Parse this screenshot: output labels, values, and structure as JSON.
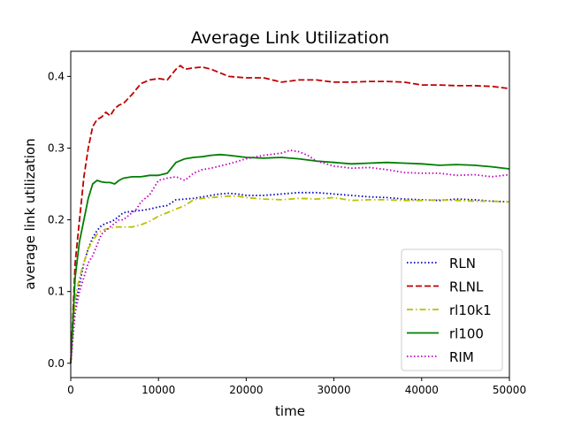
{
  "chart_data": {
    "type": "line",
    "title": "Average Link Utilization",
    "xlabel": "time",
    "ylabel": "average link utilization",
    "xlim": [
      0,
      50000
    ],
    "ylim": [
      -0.02,
      0.435
    ],
    "xticks": [
      0,
      10000,
      20000,
      30000,
      40000,
      50000
    ],
    "xtick_labels": [
      "0",
      "10000",
      "20000",
      "30000",
      "40000",
      "50000"
    ],
    "yticks": [
      0.0,
      0.1,
      0.2,
      0.3,
      0.4
    ],
    "ytick_labels": [
      "0.0",
      "0.1",
      "0.2",
      "0.3",
      "0.4"
    ],
    "grid": false,
    "legend": "lower-right",
    "series": [
      {
        "name": "RLN",
        "color": "#0000bf",
        "style": "dotted",
        "x": [
          0,
          500,
          1000,
          1500,
          2000,
          2500,
          3000,
          3500,
          4000,
          4500,
          5000,
          5500,
          6000,
          7000,
          8000,
          9000,
          10000,
          11000,
          12000,
          13000,
          14000,
          15000,
          16000,
          17000,
          18000,
          19000,
          20000,
          22000,
          24000,
          26000,
          28000,
          30000,
          32000,
          34000,
          36000,
          38000,
          40000,
          42000,
          44000,
          46000,
          48000,
          50000
        ],
        "y": [
          0.0,
          0.08,
          0.11,
          0.14,
          0.16,
          0.175,
          0.185,
          0.192,
          0.195,
          0.197,
          0.2,
          0.205,
          0.21,
          0.212,
          0.213,
          0.215,
          0.218,
          0.22,
          0.228,
          0.229,
          0.23,
          0.232,
          0.234,
          0.236,
          0.237,
          0.236,
          0.234,
          0.234,
          0.236,
          0.238,
          0.238,
          0.236,
          0.234,
          0.232,
          0.231,
          0.229,
          0.228,
          0.227,
          0.229,
          0.228,
          0.226,
          0.225
        ]
      },
      {
        "name": "RLNL",
        "color": "#bf0000",
        "style": "dashed",
        "x": [
          0,
          500,
          1000,
          1500,
          2000,
          2500,
          3000,
          3500,
          4000,
          4500,
          5000,
          5500,
          6000,
          7000,
          8000,
          9000,
          10000,
          11000,
          12000,
          12500,
          13000,
          14000,
          15000,
          16000,
          17000,
          18000,
          20000,
          22000,
          24000,
          26000,
          28000,
          30000,
          32000,
          34000,
          36000,
          38000,
          40000,
          42000,
          44000,
          46000,
          48000,
          50000
        ],
        "y": [
          0.0,
          0.14,
          0.2,
          0.26,
          0.3,
          0.33,
          0.34,
          0.343,
          0.35,
          0.345,
          0.355,
          0.36,
          0.362,
          0.375,
          0.39,
          0.395,
          0.397,
          0.395,
          0.41,
          0.415,
          0.41,
          0.412,
          0.413,
          0.41,
          0.405,
          0.4,
          0.398,
          0.398,
          0.392,
          0.395,
          0.395,
          0.392,
          0.392,
          0.393,
          0.393,
          0.392,
          0.388,
          0.388,
          0.387,
          0.387,
          0.386,
          0.383
        ]
      },
      {
        "name": "rl10k1",
        "color": "#bfbf00",
        "style": "dashdot",
        "x": [
          0,
          500,
          1000,
          1500,
          2000,
          2500,
          3000,
          3500,
          4000,
          4500,
          5000,
          5500,
          6000,
          7000,
          8000,
          9000,
          10000,
          11000,
          12000,
          13000,
          14000,
          15000,
          16000,
          17000,
          18000,
          19000,
          20000,
          22000,
          24000,
          26000,
          28000,
          30000,
          32000,
          34000,
          36000,
          38000,
          40000,
          42000,
          44000,
          46000,
          48000,
          50000
        ],
        "y": [
          0.0,
          0.09,
          0.12,
          0.14,
          0.16,
          0.17,
          0.18,
          0.185,
          0.187,
          0.188,
          0.19,
          0.19,
          0.19,
          0.19,
          0.193,
          0.198,
          0.205,
          0.21,
          0.215,
          0.22,
          0.228,
          0.23,
          0.231,
          0.232,
          0.233,
          0.233,
          0.231,
          0.229,
          0.228,
          0.23,
          0.229,
          0.231,
          0.227,
          0.228,
          0.228,
          0.227,
          0.227,
          0.228,
          0.227,
          0.226,
          0.226,
          0.225
        ]
      },
      {
        "name": "rl100",
        "color": "#007f00",
        "style": "solid",
        "x": [
          0,
          500,
          1000,
          1500,
          2000,
          2500,
          3000,
          3500,
          4000,
          4500,
          5000,
          5500,
          6000,
          7000,
          8000,
          9000,
          10000,
          11000,
          12000,
          13000,
          14000,
          15000,
          16000,
          17000,
          18000,
          20000,
          22000,
          24000,
          26000,
          28000,
          30000,
          32000,
          34000,
          36000,
          38000,
          40000,
          42000,
          44000,
          46000,
          48000,
          50000
        ],
        "y": [
          0.0,
          0.12,
          0.17,
          0.2,
          0.23,
          0.25,
          0.255,
          0.253,
          0.252,
          0.252,
          0.25,
          0.255,
          0.258,
          0.26,
          0.26,
          0.262,
          0.262,
          0.265,
          0.28,
          0.285,
          0.287,
          0.288,
          0.29,
          0.291,
          0.29,
          0.287,
          0.286,
          0.287,
          0.285,
          0.282,
          0.28,
          0.278,
          0.279,
          0.28,
          0.279,
          0.278,
          0.276,
          0.277,
          0.276,
          0.274,
          0.271
        ]
      },
      {
        "name": "RIM",
        "color": "#bf00bf",
        "style": "dotted",
        "x": [
          0,
          500,
          1000,
          1500,
          2000,
          2500,
          3000,
          3500,
          4000,
          4500,
          5000,
          5500,
          6000,
          6500,
          7000,
          7500,
          8000,
          9000,
          10000,
          11000,
          12000,
          13000,
          14000,
          15000,
          16000,
          18000,
          20000,
          22000,
          24000,
          25000,
          26000,
          27000,
          28000,
          30000,
          32000,
          34000,
          36000,
          38000,
          40000,
          42000,
          44000,
          46000,
          48000,
          50000
        ],
        "y": [
          0.0,
          0.07,
          0.1,
          0.12,
          0.14,
          0.15,
          0.165,
          0.18,
          0.185,
          0.19,
          0.195,
          0.2,
          0.2,
          0.205,
          0.21,
          0.215,
          0.225,
          0.235,
          0.255,
          0.258,
          0.26,
          0.255,
          0.265,
          0.27,
          0.272,
          0.278,
          0.285,
          0.29,
          0.293,
          0.297,
          0.295,
          0.29,
          0.282,
          0.275,
          0.272,
          0.273,
          0.27,
          0.266,
          0.265,
          0.265,
          0.262,
          0.263,
          0.26,
          0.263
        ]
      }
    ]
  }
}
